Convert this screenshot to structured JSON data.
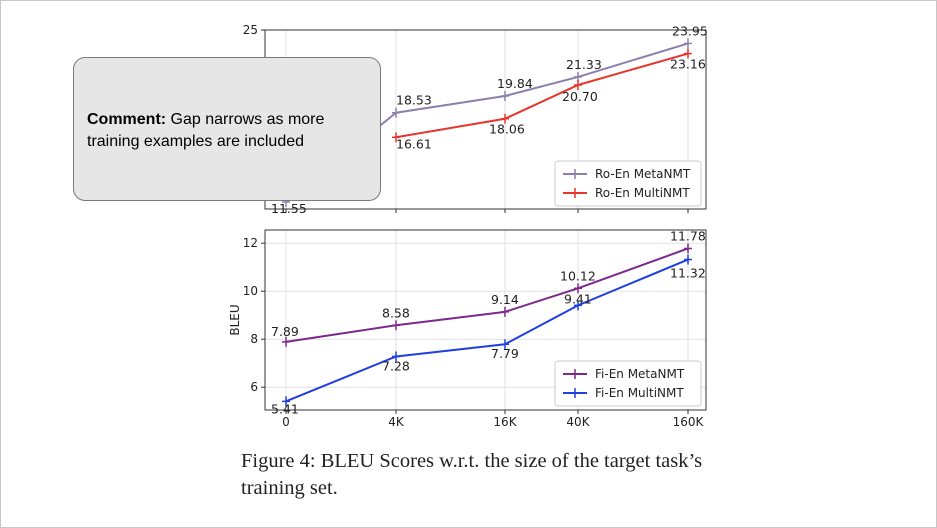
{
  "chart_data": [
    {
      "type": "line",
      "title": "",
      "xlabel": "",
      "ylabel": "",
      "categories": [
        "0",
        "4K",
        "16K",
        "40K",
        "160K"
      ],
      "ylim": [
        11,
        25
      ],
      "yticks": [
        25
      ],
      "grid": true,
      "legend_position": "lower-right",
      "series": [
        {
          "name": "Ro-En MetaNMT",
          "color": "#8c7fae",
          "values": [
            11.55,
            18.53,
            19.84,
            21.33,
            23.95
          ],
          "labels": [
            "11.55",
            "18.53",
            "19.84",
            "21.33",
            "23.95"
          ]
        },
        {
          "name": "Ro-En MultiNMT",
          "color": "#e8352b",
          "values": [
            null,
            16.61,
            18.06,
            20.7,
            23.16
          ],
          "labels": [
            "",
            "16.61",
            "18.06",
            "20.70",
            "23.16"
          ]
        }
      ]
    },
    {
      "type": "line",
      "title": "",
      "xlabel": "",
      "ylabel": "BLEU",
      "categories": [
        "0",
        "4K",
        "16K",
        "40K",
        "160K"
      ],
      "ylim": [
        5,
        12.5
      ],
      "yticks": [
        6,
        8,
        10,
        12
      ],
      "grid": true,
      "legend_position": "lower-right",
      "series": [
        {
          "name": "Fi-En MetaNMT",
          "color": "#7b2a8c",
          "values": [
            7.89,
            8.58,
            9.14,
            10.12,
            11.78
          ],
          "labels": [
            "7.89",
            "8.58",
            "9.14",
            "10.12",
            "11.78"
          ]
        },
        {
          "name": "Fi-En MultiNMT",
          "color": "#1f3fe0",
          "values": [
            5.41,
            7.28,
            7.79,
            9.41,
            11.32
          ],
          "labels": [
            "5.41",
            "7.28",
            "7.79",
            "9.41",
            "11.32"
          ]
        }
      ]
    }
  ],
  "caption": "Figure 4: BLEU Scores w.r.t. the size of the target task’s training set.",
  "comment": {
    "label": "Comment:",
    "text": " Gap narrows as more training examples are included"
  }
}
